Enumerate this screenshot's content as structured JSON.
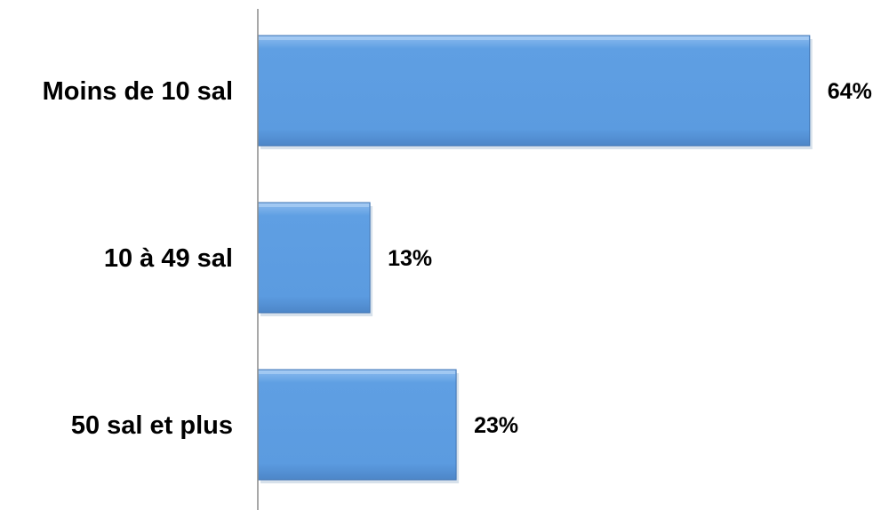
{
  "chart_data": {
    "type": "bar",
    "orientation": "horizontal",
    "categories": [
      "Moins de 10 sal",
      "10 à 49 sal",
      "50 sal et plus"
    ],
    "values": [
      64,
      13,
      23
    ],
    "value_labels": [
      "64%",
      "13%",
      "23%"
    ],
    "unit": "%",
    "xlim": [
      0,
      100
    ],
    "grid": false,
    "legend": "none",
    "colors": {
      "bar": "#5b9be0",
      "bar_edge": "#3f74b4",
      "bar_shadow": "#b7c8db",
      "axis": "#8c8c8c"
    }
  }
}
